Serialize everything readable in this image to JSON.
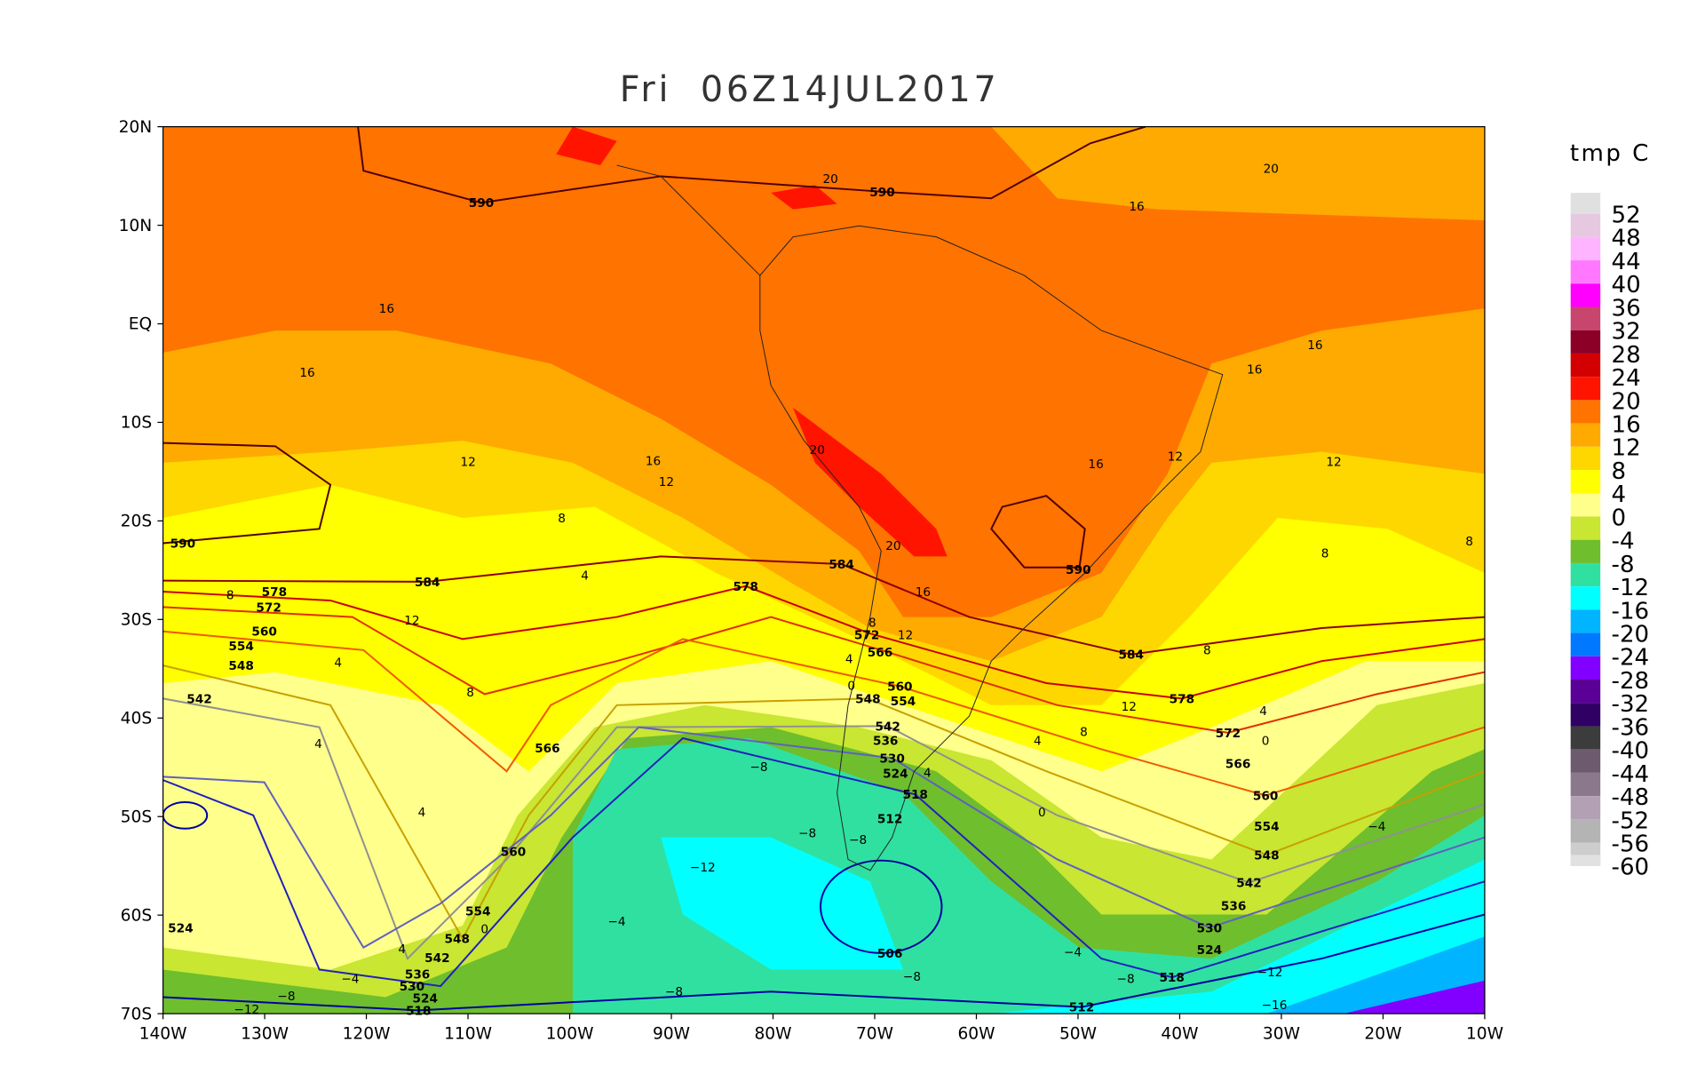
{
  "map": {
    "title": "Fri  06Z14JUL2017",
    "xlim": [
      -140,
      -10
    ],
    "ylim": [
      -70,
      20
    ],
    "xticks": [
      {
        "value": -140,
        "label": "140W"
      },
      {
        "value": -130,
        "label": "130W"
      },
      {
        "value": -120,
        "label": "120W"
      },
      {
        "value": -110,
        "label": "110W"
      },
      {
        "value": -100,
        "label": "100W"
      },
      {
        "value": -90,
        "label": "90W"
      },
      {
        "value": -80,
        "label": "80W"
      },
      {
        "value": -70,
        "label": "70W"
      },
      {
        "value": -60,
        "label": "60W"
      },
      {
        "value": -50,
        "label": "50W"
      },
      {
        "value": -40,
        "label": "40W"
      },
      {
        "value": -30,
        "label": "30W"
      },
      {
        "value": -20,
        "label": "20W"
      },
      {
        "value": -10,
        "label": "10W"
      }
    ],
    "yticks": [
      {
        "value": 20,
        "label": "20N"
      },
      {
        "value": 10,
        "label": "10N"
      },
      {
        "value": 0,
        "label": "EQ"
      },
      {
        "value": -10,
        "label": "10S"
      },
      {
        "value": -20,
        "label": "20S"
      },
      {
        "value": -30,
        "label": "30S"
      },
      {
        "value": -40,
        "label": "40S"
      },
      {
        "value": -50,
        "label": "50S"
      },
      {
        "value": -60,
        "label": "60S"
      },
      {
        "value": -70,
        "label": "70S"
      }
    ],
    "colorbar": {
      "label": "tmp C",
      "levels": [
        52,
        48,
        44,
        40,
        36,
        32,
        28,
        24,
        20,
        16,
        12,
        8,
        4,
        0,
        -4,
        -8,
        -12,
        -16,
        -20,
        -24,
        -28,
        -32,
        -36,
        -40,
        -44,
        -48,
        -52,
        -56,
        -60
      ],
      "colors": [
        "#e0e0e0",
        "#e6c8e0",
        "#ffb4ff",
        "#ff78ff",
        "#ff00ff",
        "#c8466e",
        "#8c0028",
        "#d20000",
        "#ff1400",
        "#ff7300",
        "#ffaa00",
        "#ffd700",
        "#ffff00",
        "#ffff8c",
        "#c8e632",
        "#6ebe2d",
        "#30e0a0",
        "#00ffff",
        "#00b4ff",
        "#0078ff",
        "#8200ff",
        "#5a0096",
        "#300064",
        "#3c3c3c",
        "#6e5a6e",
        "#8c788c",
        "#b4a0b4",
        "#b4b4b4",
        "#cdcdcd",
        "#e1e1e1"
      ]
    },
    "contour_labels": [
      "590",
      "590",
      "590",
      "590",
      "584",
      "584",
      "584",
      "578",
      "578",
      "578",
      "572",
      "572",
      "572",
      "566",
      "566",
      "566",
      "560",
      "560",
      "560",
      "560",
      "554",
      "554",
      "554",
      "554",
      "548",
      "548",
      "548",
      "548",
      "542",
      "542",
      "542",
      "542",
      "536",
      "536",
      "536",
      "530",
      "530",
      "530",
      "524",
      "524",
      "524",
      "524",
      "518",
      "518",
      "518",
      "512",
      "512",
      "506",
      "20",
      "20",
      "16",
      "16",
      "16",
      "16",
      "16",
      "20",
      "16",
      "12",
      "12",
      "12",
      "16",
      "12",
      "8",
      "4",
      "20",
      "8",
      "8",
      "8",
      "16",
      "12",
      "8",
      "12",
      "4",
      "4",
      "0",
      "8",
      "8",
      "4",
      "12",
      "0",
      "4",
      "4",
      "8",
      "4",
      "−8",
      "−8",
      "−8",
      "0",
      "4",
      "−4",
      "−12",
      "−4",
      "0",
      "4",
      "−4",
      "−8",
      "−12",
      "−4",
      "−8",
      "−8",
      "−8",
      "−12",
      "−16"
    ]
  }
}
